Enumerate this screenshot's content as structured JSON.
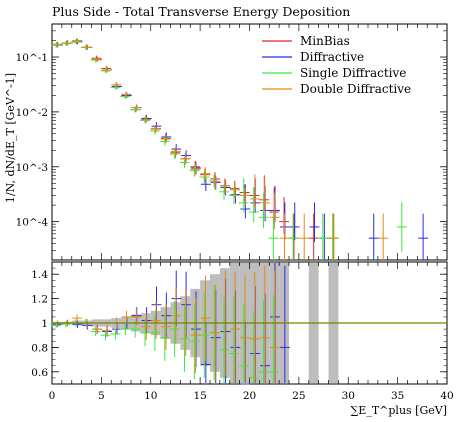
{
  "chart_data": {
    "type": "scatter",
    "title": "Plus Side - Total Transverse Energy Deposition",
    "xlabel": "∑E_T^plus [GeV]",
    "ylabel": "1/N, dN/dE_T [GeV^-1]",
    "xlim": [
      0,
      40
    ],
    "main_ylim_log": [
      2e-05,
      0.4
    ],
    "ratio_ylim": [
      0.5,
      1.5
    ],
    "x_ticks": [
      "0",
      "5",
      "10",
      "15",
      "20",
      "25",
      "30",
      "35",
      "40"
    ],
    "main_y_ticks": [
      "10^-1",
      "10^-2",
      "10^-3",
      "10^-4"
    ],
    "ratio_y_ticks": [
      "1.4",
      "1.2",
      "1",
      "0.8",
      "0.6"
    ],
    "legend_position": "top-right",
    "colors": {
      "MinBias": "#e8252b",
      "Diffractive": "#2a2ae8",
      "Single Diffractive": "#3ee83e",
      "Double Diffractive": "#e88a10",
      "reference": "#808000",
      "band": "#bdbdbd"
    },
    "series": [
      {
        "name": "MinBias",
        "points": [
          [
            0.5,
            0.17
          ],
          [
            1.5,
            0.18
          ],
          [
            2.5,
            0.19
          ],
          [
            3.5,
            0.15
          ],
          [
            4.5,
            0.095
          ],
          [
            5.5,
            0.062
          ],
          [
            6.5,
            0.031
          ],
          [
            7.5,
            0.02
          ],
          [
            8.5,
            0.011
          ],
          [
            9.5,
            0.0074
          ],
          [
            10.5,
            0.0049
          ],
          [
            11.5,
            0.0033
          ],
          [
            12.5,
            0.0018
          ],
          [
            13.5,
            0.0014
          ],
          [
            14.5,
            0.001
          ],
          [
            15.5,
            0.00072
          ],
          [
            16.5,
            0.0006
          ],
          [
            17.5,
            0.00045
          ],
          [
            18.5,
            0.0004
          ],
          [
            19.5,
            0.00034
          ],
          [
            20.5,
            0.0003
          ],
          [
            21.5,
            0.00025
          ],
          [
            22.5,
            0.00015
          ],
          [
            23.5,
            0.0001
          ],
          [
            24.5,
            5e-05
          ],
          [
            26.5,
            5e-05
          ],
          [
            28.5,
            5e-05
          ]
        ]
      },
      {
        "name": "Diffractive",
        "points": [
          [
            0.5,
            0.165
          ],
          [
            1.5,
            0.18
          ],
          [
            2.5,
            0.19
          ],
          [
            3.5,
            0.15
          ],
          [
            4.5,
            0.09
          ],
          [
            5.5,
            0.058
          ],
          [
            6.5,
            0.029
          ],
          [
            7.5,
            0.02
          ],
          [
            8.5,
            0.012
          ],
          [
            9.5,
            0.0076
          ],
          [
            10.5,
            0.0055
          ],
          [
            11.5,
            0.0035
          ],
          [
            12.5,
            0.0021
          ],
          [
            13.5,
            0.0016
          ],
          [
            14.5,
            0.00095
          ],
          [
            15.5,
            0.00048
          ],
          [
            16.5,
            0.00052
          ],
          [
            17.5,
            0.00042
          ],
          [
            18.5,
            0.00031
          ],
          [
            19.5,
            0.00017
          ],
          [
            20.5,
            0.00022
          ],
          [
            21.5,
            0.00016
          ],
          [
            22.5,
            0.00016
          ],
          [
            23.5,
            8e-05
          ],
          [
            24.5,
            8e-05
          ],
          [
            26.5,
            8e-05
          ],
          [
            27.5,
            5e-05
          ],
          [
            32.5,
            5e-05
          ],
          [
            37.5,
            5e-05
          ]
        ]
      },
      {
        "name": "Single Diffractive",
        "points": [
          [
            0.5,
            0.165
          ],
          [
            1.5,
            0.175
          ],
          [
            2.5,
            0.19
          ],
          [
            3.5,
            0.15
          ],
          [
            4.5,
            0.088
          ],
          [
            5.5,
            0.056
          ],
          [
            6.5,
            0.028
          ],
          [
            7.5,
            0.019
          ],
          [
            8.5,
            0.011
          ],
          [
            9.5,
            0.007
          ],
          [
            10.5,
            0.0045
          ],
          [
            11.5,
            0.0029
          ],
          [
            12.5,
            0.0017
          ],
          [
            13.5,
            0.0012
          ],
          [
            14.5,
            0.00085
          ],
          [
            15.5,
            0.00065
          ],
          [
            16.5,
            0.00055
          ],
          [
            17.5,
            0.00035
          ],
          [
            18.5,
            0.0003
          ],
          [
            19.5,
            0.00022
          ],
          [
            20.5,
            0.00015
          ],
          [
            21.5,
            0.00012
          ],
          [
            22.5,
            5e-05
          ],
          [
            24.5,
            5e-05
          ],
          [
            27.5,
            5e-05
          ],
          [
            28.5,
            5e-05
          ],
          [
            35.5,
            8e-05
          ]
        ]
      },
      {
        "name": "Double Diffractive",
        "points": [
          [
            0.5,
            0.17
          ],
          [
            1.5,
            0.18
          ],
          [
            2.5,
            0.2
          ],
          [
            3.5,
            0.15
          ],
          [
            4.5,
            0.09
          ],
          [
            5.5,
            0.058
          ],
          [
            6.5,
            0.031
          ],
          [
            7.5,
            0.021
          ],
          [
            8.5,
            0.012
          ],
          [
            9.5,
            0.0072
          ],
          [
            10.5,
            0.005
          ],
          [
            11.5,
            0.0032
          ],
          [
            12.5,
            0.0019
          ],
          [
            13.5,
            0.0014
          ],
          [
            14.5,
            0.0009
          ],
          [
            15.5,
            0.00075
          ],
          [
            16.5,
            0.00055
          ],
          [
            17.5,
            0.00045
          ],
          [
            18.5,
            0.00038
          ],
          [
            19.5,
            0.0003
          ],
          [
            20.5,
            0.00026
          ],
          [
            21.5,
            0.00022
          ],
          [
            22.5,
            0.00012
          ],
          [
            23.5,
            5e-05
          ],
          [
            25.5,
            5e-05
          ],
          [
            28.5,
            5e-05
          ],
          [
            33.5,
            5e-05
          ]
        ]
      }
    ],
    "ratio_band": [
      [
        0,
        0.01
      ],
      [
        1,
        0.01
      ],
      [
        2,
        0.02
      ],
      [
        3,
        0.02
      ],
      [
        4,
        0.03
      ],
      [
        5,
        0.03
      ],
      [
        6,
        0.04
      ],
      [
        7,
        0.05
      ],
      [
        8,
        0.07
      ],
      [
        9,
        0.08
      ],
      [
        10,
        0.1
      ],
      [
        11,
        0.13
      ],
      [
        12,
        0.17
      ],
      [
        13,
        0.22
      ],
      [
        14,
        0.28
      ],
      [
        15,
        0.35
      ],
      [
        16,
        0.4
      ],
      [
        17,
        0.45
      ],
      [
        18,
        0.5
      ],
      [
        19,
        0.5
      ],
      [
        20,
        0.5
      ],
      [
        21,
        0.5
      ],
      [
        22,
        0.5
      ],
      [
        23,
        0.5
      ],
      [
        24,
        0
      ],
      [
        26,
        0.5
      ],
      [
        27,
        0
      ],
      [
        28,
        0.5
      ],
      [
        29,
        0
      ]
    ],
    "ratio_series": {
      "Diffractive": [
        [
          0.5,
          0.99
        ],
        [
          1.5,
          1.0
        ],
        [
          2.5,
          0.99
        ],
        [
          3.5,
          0.98
        ],
        [
          4.5,
          0.95
        ],
        [
          5.5,
          0.93
        ],
        [
          6.5,
          0.95
        ],
        [
          7.5,
          1.0
        ],
        [
          8.5,
          1.06
        ],
        [
          9.5,
          1.02
        ],
        [
          10.5,
          1.15
        ],
        [
          11.5,
          1.06
        ],
        [
          12.5,
          1.2
        ],
        [
          13.5,
          1.15
        ],
        [
          14.5,
          0.95
        ],
        [
          15.5,
          0.66
        ],
        [
          16.5,
          0.88
        ],
        [
          17.5,
          0.93
        ],
        [
          18.5,
          0.8
        ],
        [
          19.5,
          0.5
        ],
        [
          20.5,
          0.75
        ],
        [
          21.5,
          0.65
        ],
        [
          22.5,
          1.05
        ],
        [
          23.5,
          0.8
        ]
      ],
      "Single Diffractive": [
        [
          0.5,
          0.98
        ],
        [
          1.5,
          0.99
        ],
        [
          2.5,
          1.0
        ],
        [
          3.5,
          1.0
        ],
        [
          4.5,
          0.93
        ],
        [
          5.5,
          0.9
        ],
        [
          6.5,
          0.91
        ],
        [
          7.5,
          0.95
        ],
        [
          8.5,
          0.95
        ],
        [
          9.5,
          0.92
        ],
        [
          10.5,
          0.92
        ],
        [
          11.5,
          0.88
        ],
        [
          12.5,
          0.95
        ],
        [
          13.5,
          0.87
        ],
        [
          14.5,
          0.85
        ],
        [
          15.5,
          0.9
        ],
        [
          16.5,
          0.92
        ],
        [
          17.5,
          0.78
        ],
        [
          18.5,
          0.75
        ],
        [
          19.5,
          0.65
        ],
        [
          20.5,
          0.55
        ],
        [
          21.5,
          0.6
        ],
        [
          22.5,
          0.6
        ]
      ],
      "Double Diffractive": [
        [
          0.5,
          1.0
        ],
        [
          1.5,
          1.0
        ],
        [
          2.5,
          1.04
        ],
        [
          3.5,
          1.0
        ],
        [
          4.5,
          0.95
        ],
        [
          5.5,
          0.94
        ],
        [
          6.5,
          1.0
        ],
        [
          7.5,
          1.05
        ],
        [
          8.5,
          1.05
        ],
        [
          9.5,
          0.97
        ],
        [
          10.5,
          1.02
        ],
        [
          11.5,
          0.97
        ],
        [
          12.5,
          1.06
        ],
        [
          13.5,
          1.0
        ],
        [
          14.5,
          0.9
        ],
        [
          15.5,
          1.04
        ],
        [
          16.5,
          0.92
        ],
        [
          17.5,
          1.0
        ],
        [
          18.5,
          0.95
        ],
        [
          19.5,
          0.88
        ],
        [
          20.5,
          0.87
        ],
        [
          21.5,
          0.88
        ],
        [
          22.5,
          0.8
        ]
      ]
    }
  }
}
